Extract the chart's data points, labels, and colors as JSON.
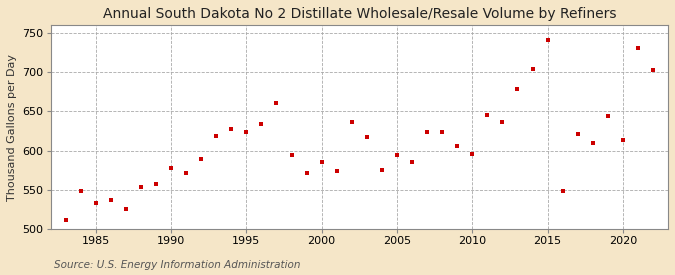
{
  "title": "Annual South Dakota No 2 Distillate Wholesale/Resale Volume by Refiners",
  "ylabel": "Thousand Gallons per Day",
  "source": "Source: U.S. Energy Information Administration",
  "bg_color": "#f5e6c8",
  "plot_bg_color": "#ffffff",
  "marker_color": "#cc0000",
  "years": [
    1983,
    1984,
    1985,
    1986,
    1987,
    1988,
    1989,
    1990,
    1991,
    1992,
    1993,
    1994,
    1995,
    1996,
    1997,
    1998,
    1999,
    2000,
    2001,
    2002,
    2003,
    2004,
    2005,
    2006,
    2007,
    2008,
    2009,
    2010,
    2011,
    2012,
    2013,
    2014,
    2015,
    2016,
    2017,
    2018,
    2019,
    2020,
    2021,
    2022
  ],
  "values": [
    511,
    549,
    533,
    537,
    525,
    553,
    558,
    578,
    571,
    589,
    618,
    628,
    624,
    634,
    660,
    594,
    572,
    586,
    574,
    636,
    617,
    575,
    594,
    586,
    624,
    624,
    606,
    595,
    645,
    636,
    679,
    704,
    741,
    549,
    621,
    609,
    644,
    614,
    731,
    703
  ],
  "xlim": [
    1982,
    2023
  ],
  "ylim": [
    500,
    760
  ],
  "yticks": [
    500,
    550,
    600,
    650,
    700,
    750
  ],
  "xticks": [
    1985,
    1990,
    1995,
    2000,
    2005,
    2010,
    2015,
    2020
  ],
  "title_fontsize": 10,
  "label_fontsize": 8,
  "tick_fontsize": 8,
  "source_fontsize": 7.5
}
